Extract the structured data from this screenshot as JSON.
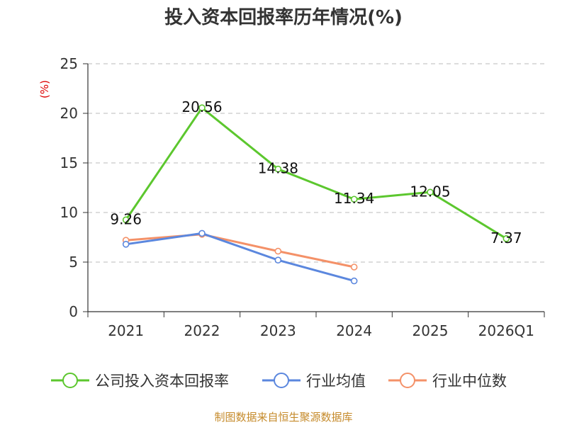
{
  "chart_data": {
    "type": "line",
    "title": "投入资本回报率历年情况(%)",
    "ylabel": "(%)",
    "xlabel": "",
    "categories": [
      "2021",
      "2022",
      "2023",
      "2024",
      "2025",
      "2026Q1"
    ],
    "ylim": [
      0,
      25
    ],
    "yticks": [
      0,
      5,
      10,
      15,
      20,
      25
    ],
    "grid": true,
    "legend_position": "bottom",
    "series": [
      {
        "name": "公司投入资本回报率",
        "color": "#5cc72e",
        "values": [
          9.26,
          20.56,
          14.38,
          11.34,
          12.05,
          7.37
        ],
        "labels": [
          "9.26",
          "20.56",
          "14.38",
          "11.34",
          "12.05",
          "7.37"
        ]
      },
      {
        "name": "行业均值",
        "color": "#5b87de",
        "values": [
          6.8,
          7.9,
          5.2,
          3.1,
          null,
          null
        ]
      },
      {
        "name": "行业中位数",
        "color": "#f49168",
        "values": [
          7.2,
          7.8,
          6.1,
          4.5,
          null,
          null
        ]
      }
    ],
    "source": "制图数据来自恒生聚源数据库"
  }
}
